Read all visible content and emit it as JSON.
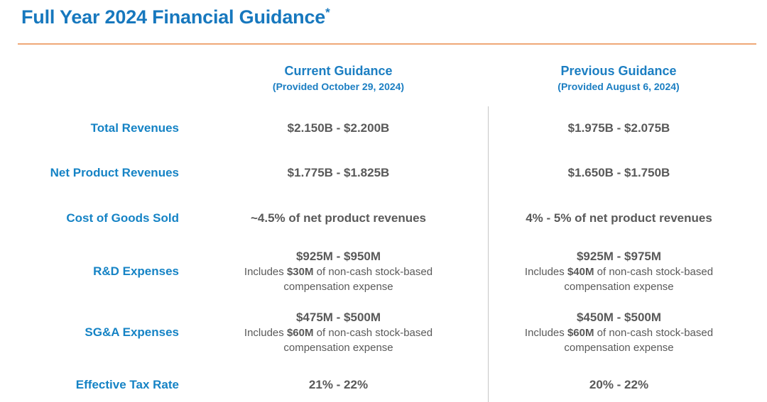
{
  "page": {
    "title": "Full Year 2024 Financial Guidance",
    "title_asterisk": "*"
  },
  "columns": [
    {
      "label": "Current Guidance",
      "sublabel": "(Provided October 29, 2024)"
    },
    {
      "label": "Previous Guidance",
      "sublabel": "(Provided August 6, 2024)"
    }
  ],
  "rows": [
    {
      "label": "Total Revenues",
      "current": {
        "main": "$2.150B - $2.200B"
      },
      "previous": {
        "main": "$1.975B - $2.075B"
      }
    },
    {
      "label": "Net Product Revenues",
      "current": {
        "main": "$1.775B - $1.825B"
      },
      "previous": {
        "main": "$1.650B - $1.750B"
      }
    },
    {
      "label": "Cost of Goods Sold",
      "current": {
        "main": "~4.5% of net product revenues"
      },
      "previous": {
        "main": "4% - 5% of net product revenues"
      }
    },
    {
      "label": "R&D Expenses",
      "current": {
        "main": "$925M - $950M",
        "note_prefix": "Includes ",
        "note_amount": "$30M",
        "note_suffix": " of non-cash stock-based compensation expense"
      },
      "previous": {
        "main": "$925M - $975M",
        "note_prefix": "Includes ",
        "note_amount": "$40M",
        "note_suffix": " of non-cash stock-based compensation expense"
      }
    },
    {
      "label": "SG&A Expenses",
      "current": {
        "main": "$475M - $500M",
        "note_prefix": "Includes ",
        "note_amount": "$60M",
        "note_suffix": " of non-cash stock-based compensation expense"
      },
      "previous": {
        "main": "$450M - $500M",
        "note_prefix": "Includes ",
        "note_amount": "$60M",
        "note_suffix": " of non-cash stock-based compensation expense"
      }
    },
    {
      "label": "Effective Tax Rate",
      "current": {
        "main": "21% - 22%"
      },
      "previous": {
        "main": "20% - 22%"
      }
    }
  ],
  "colors": {
    "title_blue": "#1778BE",
    "header_blue": "#1B7EC2",
    "label_blue": "#1583C5",
    "accent_orange": "#EFA877",
    "value_gray": "#595959",
    "row_shade_gray": "#F2F2F2",
    "divider_gray": "#C6C6C6"
  }
}
